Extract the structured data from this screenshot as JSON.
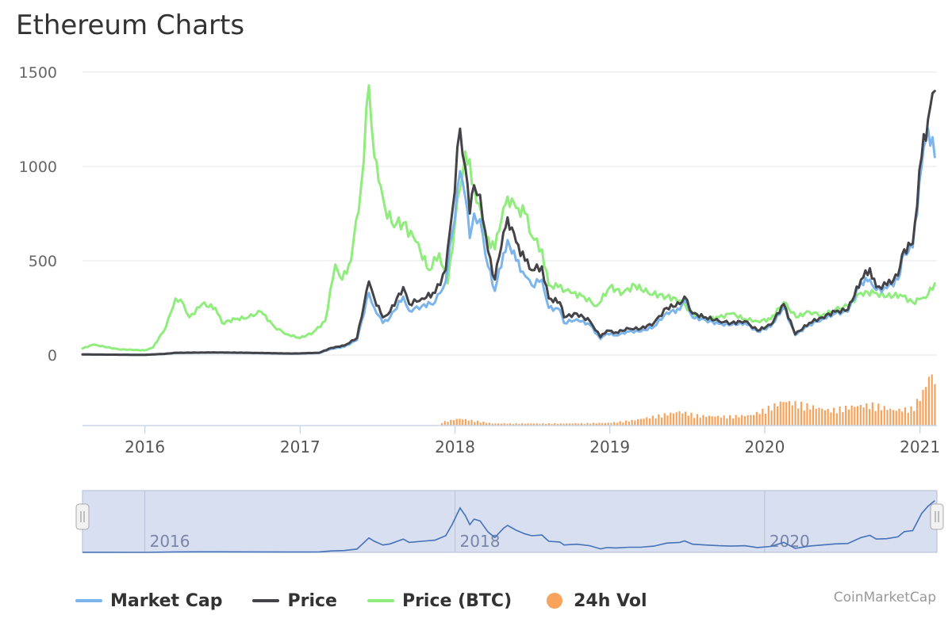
{
  "page": {
    "title": "Ethereum Charts",
    "credit": "CoinMarketCap"
  },
  "legend": [
    {
      "label": "Market Cap",
      "color": "#7cb5ec",
      "kind": "line"
    },
    {
      "label": "Price",
      "color": "#434348",
      "kind": "line"
    },
    {
      "label": "Price (BTC)",
      "color": "#90ed7d",
      "kind": "line"
    },
    {
      "label": "24h Vol",
      "color": "#f7a35c",
      "kind": "dot"
    }
  ],
  "chart_data": {
    "type": "line",
    "title": "Ethereum Charts",
    "ylim": [
      0,
      1500
    ],
    "y_ticks": [
      "0",
      "500",
      "1000",
      "1500"
    ],
    "x_range": [
      "2015-08-07",
      "2021-02-10"
    ],
    "x_ticks": [
      "2016",
      "2017",
      "2018",
      "2019",
      "2020",
      "2021"
    ],
    "navigator_ticks": [
      "2016",
      "2018",
      "2020"
    ],
    "grid": true,
    "legend_position": "bottom-left",
    "series": [
      {
        "name": "Price",
        "color": "#434348",
        "points": [
          [
            "2015-08-07",
            3
          ],
          [
            "2016-01-01",
            1
          ],
          [
            "2016-02-15",
            6
          ],
          [
            "2016-03-15",
            12
          ],
          [
            "2016-06-15",
            14
          ],
          [
            "2016-09-01",
            12
          ],
          [
            "2016-12-15",
            8
          ],
          [
            "2017-02-15",
            12
          ],
          [
            "2017-03-15",
            38
          ],
          [
            "2017-04-15",
            50
          ],
          [
            "2017-05-15",
            90
          ],
          [
            "2017-06-12",
            390
          ],
          [
            "2017-06-25",
            300
          ],
          [
            "2017-07-15",
            200
          ],
          [
            "2017-08-01",
            230
          ],
          [
            "2017-09-01",
            360
          ],
          [
            "2017-09-15",
            270
          ],
          [
            "2017-10-15",
            300
          ],
          [
            "2017-11-15",
            330
          ],
          [
            "2017-12-10",
            450
          ],
          [
            "2017-12-25",
            750
          ],
          [
            "2018-01-13",
            1200
          ],
          [
            "2018-01-25",
            1000
          ],
          [
            "2018-02-05",
            750
          ],
          [
            "2018-02-15",
            900
          ],
          [
            "2018-03-01",
            850
          ],
          [
            "2018-03-20",
            550
          ],
          [
            "2018-04-05",
            400
          ],
          [
            "2018-04-25",
            650
          ],
          [
            "2018-05-05",
            730
          ],
          [
            "2018-05-25",
            600
          ],
          [
            "2018-06-15",
            500
          ],
          [
            "2018-07-01",
            450
          ],
          [
            "2018-07-25",
            470
          ],
          [
            "2018-08-10",
            300
          ],
          [
            "2018-09-05",
            280
          ],
          [
            "2018-09-15",
            200
          ],
          [
            "2018-10-15",
            220
          ],
          [
            "2018-11-15",
            180
          ],
          [
            "2018-12-10",
            95
          ],
          [
            "2018-12-25",
            130
          ],
          [
            "2019-01-15",
            120
          ],
          [
            "2019-02-15",
            140
          ],
          [
            "2019-03-15",
            140
          ],
          [
            "2019-04-15",
            170
          ],
          [
            "2019-05-15",
            250
          ],
          [
            "2019-06-15",
            270
          ],
          [
            "2019-06-26",
            310
          ],
          [
            "2019-07-15",
            220
          ],
          [
            "2019-08-15",
            200
          ],
          [
            "2019-09-15",
            180
          ],
          [
            "2019-10-15",
            170
          ],
          [
            "2019-11-15",
            180
          ],
          [
            "2019-12-15",
            130
          ],
          [
            "2020-01-15",
            160
          ],
          [
            "2020-02-15",
            270
          ],
          [
            "2020-03-13",
            110
          ],
          [
            "2020-04-15",
            170
          ],
          [
            "2020-05-15",
            200
          ],
          [
            "2020-06-15",
            230
          ],
          [
            "2020-07-15",
            240
          ],
          [
            "2020-08-15",
            400
          ],
          [
            "2020-09-05",
            460
          ],
          [
            "2020-09-20",
            360
          ],
          [
            "2020-10-15",
            370
          ],
          [
            "2020-11-10",
            420
          ],
          [
            "2020-11-25",
            560
          ],
          [
            "2020-12-15",
            590
          ],
          [
            "2021-01-05",
            1050
          ],
          [
            "2021-01-20",
            1250
          ],
          [
            "2021-02-05",
            1400
          ]
        ]
      },
      {
        "name": "Market Cap",
        "color": "#7cb5ec",
        "points": [
          [
            "2015-08-07",
            3
          ],
          [
            "2016-01-01",
            1
          ],
          [
            "2016-02-15",
            6
          ],
          [
            "2016-03-15",
            11
          ],
          [
            "2016-06-15",
            13
          ],
          [
            "2016-09-01",
            11
          ],
          [
            "2016-12-15",
            7
          ],
          [
            "2017-02-15",
            11
          ],
          [
            "2017-03-15",
            33
          ],
          [
            "2017-04-15",
            44
          ],
          [
            "2017-05-15",
            80
          ],
          [
            "2017-06-12",
            330
          ],
          [
            "2017-06-25",
            250
          ],
          [
            "2017-07-15",
            170
          ],
          [
            "2017-08-01",
            200
          ],
          [
            "2017-09-01",
            310
          ],
          [
            "2017-09-15",
            235
          ],
          [
            "2017-10-15",
            260
          ],
          [
            "2017-11-15",
            280
          ],
          [
            "2017-12-10",
            390
          ],
          [
            "2017-12-25",
            640
          ],
          [
            "2018-01-13",
            975
          ],
          [
            "2018-01-25",
            840
          ],
          [
            "2018-02-05",
            620
          ],
          [
            "2018-02-15",
            750
          ],
          [
            "2018-03-01",
            720
          ],
          [
            "2018-03-20",
            470
          ],
          [
            "2018-04-05",
            340
          ],
          [
            "2018-04-25",
            540
          ],
          [
            "2018-05-05",
            610
          ],
          [
            "2018-05-25",
            500
          ],
          [
            "2018-06-15",
            420
          ],
          [
            "2018-07-01",
            370
          ],
          [
            "2018-07-25",
            400
          ],
          [
            "2018-08-10",
            250
          ],
          [
            "2018-09-05",
            240
          ],
          [
            "2018-09-15",
            170
          ],
          [
            "2018-10-15",
            190
          ],
          [
            "2018-11-15",
            160
          ],
          [
            "2018-12-10",
            85
          ],
          [
            "2018-12-25",
            115
          ],
          [
            "2019-01-15",
            105
          ],
          [
            "2019-02-15",
            125
          ],
          [
            "2019-03-15",
            125
          ],
          [
            "2019-04-15",
            150
          ],
          [
            "2019-05-15",
            225
          ],
          [
            "2019-06-15",
            240
          ],
          [
            "2019-06-26",
            290
          ],
          [
            "2019-07-15",
            200
          ],
          [
            "2019-08-15",
            185
          ],
          [
            "2019-09-15",
            165
          ],
          [
            "2019-10-15",
            160
          ],
          [
            "2019-11-15",
            170
          ],
          [
            "2019-12-15",
            125
          ],
          [
            "2020-01-15",
            150
          ],
          [
            "2020-02-15",
            255
          ],
          [
            "2020-03-13",
            105
          ],
          [
            "2020-04-15",
            160
          ],
          [
            "2020-05-15",
            190
          ],
          [
            "2020-06-15",
            220
          ],
          [
            "2020-07-15",
            230
          ],
          [
            "2020-08-15",
            385
          ],
          [
            "2020-09-05",
            400
          ],
          [
            "2020-09-20",
            345
          ],
          [
            "2020-10-15",
            355
          ],
          [
            "2020-11-10",
            400
          ],
          [
            "2020-11-25",
            540
          ],
          [
            "2020-12-15",
            570
          ],
          [
            "2021-01-05",
            1000
          ],
          [
            "2021-01-20",
            1200
          ],
          [
            "2021-02-05",
            1050
          ]
        ]
      },
      {
        "name": "Price (BTC)",
        "color": "#90ed7d",
        "points": [
          [
            "2015-08-07",
            35
          ],
          [
            "2015-09-01",
            55
          ],
          [
            "2015-11-01",
            30
          ],
          [
            "2016-01-01",
            25
          ],
          [
            "2016-01-20",
            40
          ],
          [
            "2016-02-20",
            150
          ],
          [
            "2016-03-13",
            300
          ],
          [
            "2016-04-01",
            270
          ],
          [
            "2016-04-15",
            200
          ],
          [
            "2016-05-15",
            270
          ],
          [
            "2016-06-15",
            250
          ],
          [
            "2016-07-01",
            170
          ],
          [
            "2016-08-01",
            190
          ],
          [
            "2016-09-01",
            200
          ],
          [
            "2016-10-01",
            230
          ],
          [
            "2016-11-01",
            150
          ],
          [
            "2016-12-01",
            110
          ],
          [
            "2017-01-01",
            90
          ],
          [
            "2017-02-01",
            120
          ],
          [
            "2017-03-01",
            180
          ],
          [
            "2017-03-25",
            480
          ],
          [
            "2017-04-10",
            400
          ],
          [
            "2017-05-01",
            500
          ],
          [
            "2017-05-25",
            900
          ],
          [
            "2017-06-12",
            1430
          ],
          [
            "2017-06-25",
            1050
          ],
          [
            "2017-07-05",
            920
          ],
          [
            "2017-07-20",
            780
          ],
          [
            "2017-08-05",
            700
          ],
          [
            "2017-09-01",
            700
          ],
          [
            "2017-10-01",
            600
          ],
          [
            "2017-11-01",
            450
          ],
          [
            "2017-11-25",
            540
          ],
          [
            "2017-12-15",
            380
          ],
          [
            "2018-01-01",
            700
          ],
          [
            "2018-01-25",
            1080
          ],
          [
            "2018-02-15",
            900
          ],
          [
            "2018-03-15",
            630
          ],
          [
            "2018-04-05",
            560
          ],
          [
            "2018-04-25",
            780
          ],
          [
            "2018-05-05",
            840
          ],
          [
            "2018-05-25",
            780
          ],
          [
            "2018-06-15",
            750
          ],
          [
            "2018-07-01",
            630
          ],
          [
            "2018-07-25",
            560
          ],
          [
            "2018-08-10",
            370
          ],
          [
            "2018-09-01",
            360
          ],
          [
            "2018-10-01",
            330
          ],
          [
            "2018-11-01",
            310
          ],
          [
            "2018-12-01",
            260
          ],
          [
            "2019-01-01",
            360
          ],
          [
            "2019-02-01",
            330
          ],
          [
            "2019-03-01",
            370
          ],
          [
            "2019-04-01",
            330
          ],
          [
            "2019-05-15",
            310
          ],
          [
            "2019-06-15",
            290
          ],
          [
            "2019-07-15",
            220
          ],
          [
            "2019-08-15",
            190
          ],
          [
            "2019-09-15",
            200
          ],
          [
            "2019-10-15",
            220
          ],
          [
            "2019-11-15",
            190
          ],
          [
            "2019-12-15",
            180
          ],
          [
            "2020-01-15",
            190
          ],
          [
            "2020-02-15",
            280
          ],
          [
            "2020-03-15",
            200
          ],
          [
            "2020-04-15",
            230
          ],
          [
            "2020-05-15",
            210
          ],
          [
            "2020-06-15",
            240
          ],
          [
            "2020-07-15",
            260
          ],
          [
            "2020-08-15",
            330
          ],
          [
            "2020-09-15",
            330
          ],
          [
            "2020-10-15",
            310
          ],
          [
            "2020-11-15",
            320
          ],
          [
            "2020-12-15",
            280
          ],
          [
            "2021-01-05",
            300
          ],
          [
            "2021-01-20",
            320
          ],
          [
            "2021-02-05",
            380
          ]
        ]
      },
      {
        "name": "24h Vol",
        "color": "#f7a35c",
        "points": [
          [
            "2017-12-01",
            0.05
          ],
          [
            "2018-01-10",
            0.1
          ],
          [
            "2018-02-15",
            0.07
          ],
          [
            "2018-04-01",
            0.03
          ],
          [
            "2018-06-01",
            0.03
          ],
          [
            "2018-08-01",
            0.03
          ],
          [
            "2018-10-01",
            0.03
          ],
          [
            "2019-01-01",
            0.04
          ],
          [
            "2019-03-01",
            0.08
          ],
          [
            "2019-05-01",
            0.15
          ],
          [
            "2019-06-15",
            0.2
          ],
          [
            "2019-08-01",
            0.14
          ],
          [
            "2019-10-01",
            0.13
          ],
          [
            "2019-12-01",
            0.15
          ],
          [
            "2020-02-15",
            0.35
          ],
          [
            "2020-04-01",
            0.3
          ],
          [
            "2020-06-01",
            0.22
          ],
          [
            "2020-08-01",
            0.28
          ],
          [
            "2020-09-15",
            0.3
          ],
          [
            "2020-11-01",
            0.22
          ],
          [
            "2020-12-15",
            0.25
          ],
          [
            "2021-01-10",
            0.5
          ],
          [
            "2021-01-25",
            0.75
          ],
          [
            "2021-02-05",
            0.65
          ]
        ]
      }
    ]
  }
}
